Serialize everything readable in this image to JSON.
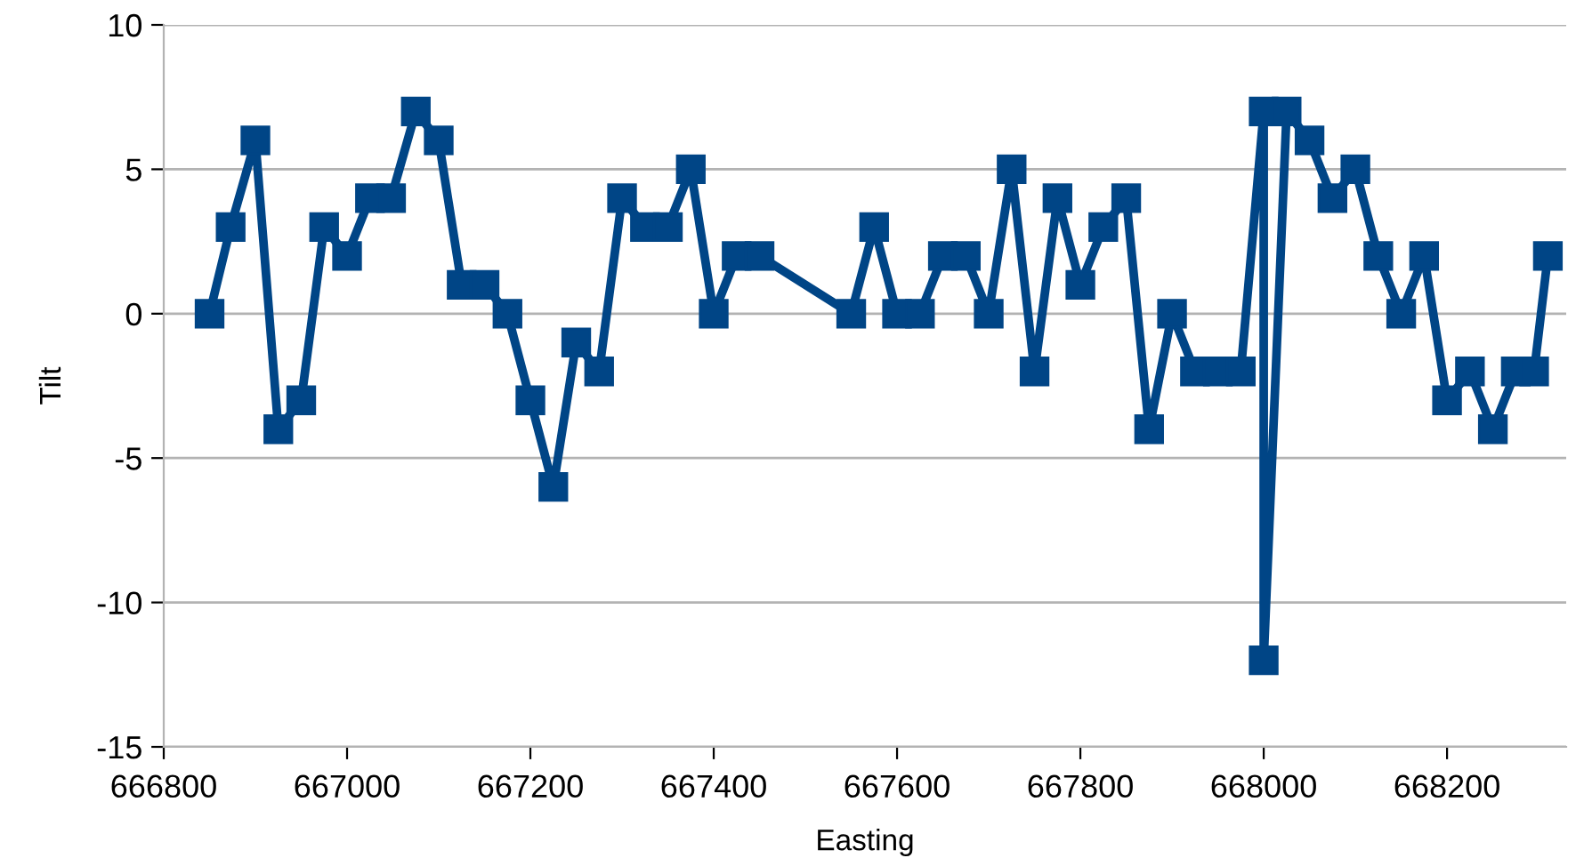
{
  "chart_data": {
    "type": "line",
    "xlabel": "Easting",
    "ylabel": "Tilt",
    "x": [
      666850,
      666873,
      666900,
      666925,
      666950,
      666975,
      667000,
      667025,
      667048,
      667075,
      667100,
      667125,
      667150,
      667175,
      667200,
      667225,
      667250,
      667275,
      667300,
      667325,
      667350,
      667375,
      667400,
      667425,
      667450,
      667550,
      667575,
      667600,
      667625,
      667650,
      667675,
      667700,
      667725,
      667750,
      667775,
      667800,
      667825,
      667850,
      667875,
      667900,
      667925,
      667950,
      667975,
      668000,
      668000,
      668025,
      668050,
      668075,
      668100,
      668125,
      668150,
      668175,
      668200,
      668225,
      668250,
      668275,
      668295,
      668310
    ],
    "series": [
      {
        "color": "#004586",
        "values": [
          0,
          3,
          6,
          -4,
          -3,
          3,
          2,
          4,
          4,
          7,
          6,
          1,
          1,
          0,
          -3,
          -6,
          -1,
          -2,
          4,
          3,
          3,
          5,
          0,
          2,
          2,
          0,
          3,
          0,
          0,
          2,
          2,
          0,
          5,
          -2,
          4,
          1,
          3,
          4,
          -4,
          0,
          -2,
          -2,
          -2,
          7,
          -12,
          7,
          6,
          4,
          5,
          2,
          0,
          2,
          -3,
          -2,
          -4,
          -2,
          -2,
          2
        ]
      }
    ],
    "xlim": [
      666800,
      668330
    ],
    "xticks": [
      666800,
      667000,
      667200,
      667400,
      667600,
      667800,
      668000,
      668200
    ],
    "ylim": [
      -15,
      10
    ],
    "yticks": [
      -15,
      -10,
      -5,
      0,
      5,
      10
    ],
    "grid": "y",
    "marker": "square",
    "line_style": "solid"
  }
}
